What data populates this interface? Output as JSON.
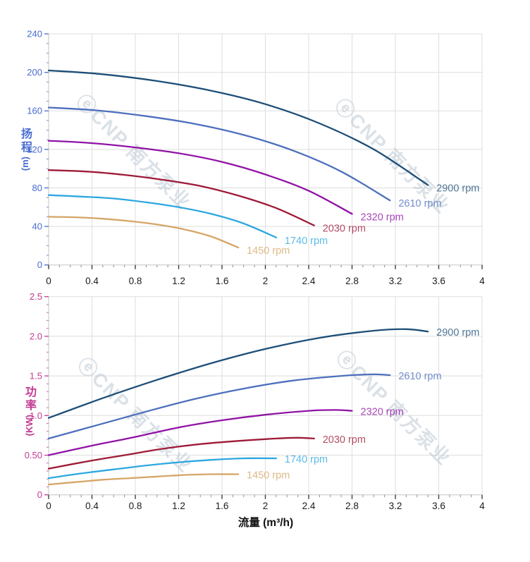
{
  "watermark": {
    "text": "ⓔCNP 南方泵业",
    "color": "#b7c4d1"
  },
  "figure": {
    "background": "#ffffff",
    "grid_color": "#dedede"
  },
  "chart_data": [
    {
      "type": "line",
      "id": "head-curves",
      "title": "",
      "xlabel": "",
      "ylabel_cn": "扬程",
      "ylabel_unit": "(m)",
      "accent": "#4a6cd0",
      "xlim": [
        0,
        4
      ],
      "ylim": [
        0,
        240
      ],
      "x_ticks": [
        0,
        0.4,
        0.8,
        1.2,
        1.6,
        2,
        2.4,
        2.8,
        3.2,
        3.6,
        4
      ],
      "x_tick_labels": [
        "0",
        "0.4",
        "0.8",
        "1.2",
        "1.6",
        "2",
        "2.4",
        "2.8",
        "3.2",
        "3.6",
        "4"
      ],
      "x_minor_step": 0.1,
      "y_ticks": [
        0,
        40,
        80,
        120,
        160,
        200,
        240
      ],
      "y_tick_labels": [
        "0",
        "40",
        "80",
        "120",
        "160",
        "200",
        "240"
      ],
      "y_minor_step": 10,
      "grid": true,
      "legend": "inline-labels-at-line-end",
      "series": [
        {
          "name": "2900 rpm",
          "color": "#1d4e78",
          "points": [
            [
              0,
              202
            ],
            [
              0.5,
              198
            ],
            [
              1.0,
              191
            ],
            [
              1.5,
              181
            ],
            [
              2.0,
              167
            ],
            [
              2.5,
              147
            ],
            [
              3.0,
              120
            ],
            [
              3.5,
              83
            ]
          ]
        },
        {
          "name": "2610 rpm",
          "color": "#4d6fbd",
          "points": [
            [
              0,
              163.5
            ],
            [
              0.45,
              160.5
            ],
            [
              0.9,
              154.5
            ],
            [
              1.35,
              146.5
            ],
            [
              1.8,
              135
            ],
            [
              2.25,
              119
            ],
            [
              2.7,
              97
            ],
            [
              3.15,
              67
            ]
          ]
        },
        {
          "name": "2320 rpm",
          "color": "#9013a5",
          "points": [
            [
              0,
              129
            ],
            [
              0.4,
              126.5
            ],
            [
              0.8,
              122
            ],
            [
              1.2,
              116
            ],
            [
              1.6,
              107
            ],
            [
              2.0,
              94
            ],
            [
              2.4,
              77
            ],
            [
              2.8,
              53
            ]
          ]
        },
        {
          "name": "2030 rpm",
          "color": "#9e1a38",
          "points": [
            [
              0,
              98.5
            ],
            [
              0.35,
              97
            ],
            [
              0.7,
              93.5
            ],
            [
              1.05,
              88.5
            ],
            [
              1.4,
              82
            ],
            [
              1.75,
              72
            ],
            [
              2.1,
              59
            ],
            [
              2.45,
              41
            ]
          ]
        },
        {
          "name": "1740 rpm",
          "color": "#2da7e0",
          "points": [
            [
              0,
              72.5
            ],
            [
              0.3,
              71
            ],
            [
              0.6,
              69
            ],
            [
              0.9,
              65
            ],
            [
              1.2,
              60
            ],
            [
              1.5,
              53
            ],
            [
              1.8,
              43
            ],
            [
              2.1,
              28.5
            ]
          ]
        },
        {
          "name": "1450 rpm",
          "color": "#d6a566",
          "points": [
            [
              0,
              50
            ],
            [
              0.25,
              49.5
            ],
            [
              0.5,
              48
            ],
            [
              0.75,
              45.5
            ],
            [
              1.0,
              42
            ],
            [
              1.25,
              37
            ],
            [
              1.5,
              29.5
            ],
            [
              1.75,
              18
            ]
          ]
        }
      ]
    },
    {
      "type": "line",
      "id": "power-curves",
      "title": "",
      "xlabel": "流量 (m³/h)",
      "ylabel_cn": "功率",
      "ylabel_unit": "(KW)",
      "accent": "#c23a92",
      "xlim": [
        0,
        4
      ],
      "ylim": [
        0,
        2.5
      ],
      "x_ticks": [
        0,
        0.4,
        0.8,
        1.2,
        1.6,
        2,
        2.4,
        2.8,
        3.2,
        3.6,
        4
      ],
      "x_tick_labels": [
        "0",
        "0.4",
        "0.8",
        "1.2",
        "1.6",
        "2",
        "2.4",
        "2.8",
        "3.2",
        "3.6",
        "4"
      ],
      "x_minor_step": 0.1,
      "y_ticks": [
        0,
        0.5,
        1.0,
        1.5,
        2.0,
        2.5
      ],
      "y_tick_labels": [
        "0",
        "0.50",
        "1.0",
        "1.5",
        "2.0",
        "2.5"
      ],
      "y_minor_step": 0.1,
      "grid": true,
      "legend": "inline-labels-at-line-end",
      "series": [
        {
          "name": "2900 rpm",
          "color": "#1d4e78",
          "points": [
            [
              0,
              0.97
            ],
            [
              0.5,
              1.22
            ],
            [
              1.0,
              1.45
            ],
            [
              1.5,
              1.66
            ],
            [
              2.0,
              1.84
            ],
            [
              2.5,
              1.98
            ],
            [
              3.0,
              2.07
            ],
            [
              3.3,
              2.09
            ],
            [
              3.5,
              2.06
            ]
          ]
        },
        {
          "name": "2610 rpm",
          "color": "#4d6fbd",
          "points": [
            [
              0,
              0.71
            ],
            [
              0.45,
              0.88
            ],
            [
              0.9,
              1.05
            ],
            [
              1.35,
              1.21
            ],
            [
              1.8,
              1.34
            ],
            [
              2.25,
              1.44
            ],
            [
              2.7,
              1.5
            ],
            [
              3.0,
              1.52
            ],
            [
              3.15,
              1.51
            ]
          ]
        },
        {
          "name": "2320 rpm",
          "color": "#9013a5",
          "points": [
            [
              0,
              0.5
            ],
            [
              0.4,
              0.62
            ],
            [
              0.8,
              0.73
            ],
            [
              1.2,
              0.85
            ],
            [
              1.6,
              0.94
            ],
            [
              2.0,
              1.01
            ],
            [
              2.4,
              1.06
            ],
            [
              2.65,
              1.07
            ],
            [
              2.8,
              1.06
            ]
          ]
        },
        {
          "name": "2030 rpm",
          "color": "#9e1a38",
          "points": [
            [
              0,
              0.33
            ],
            [
              0.35,
              0.42
            ],
            [
              0.7,
              0.5
            ],
            [
              1.05,
              0.58
            ],
            [
              1.4,
              0.64
            ],
            [
              1.75,
              0.68
            ],
            [
              2.1,
              0.71
            ],
            [
              2.3,
              0.72
            ],
            [
              2.45,
              0.71
            ]
          ]
        },
        {
          "name": "1740 rpm",
          "color": "#2da7e0",
          "points": [
            [
              0,
              0.21
            ],
            [
              0.3,
              0.27
            ],
            [
              0.6,
              0.32
            ],
            [
              0.9,
              0.37
            ],
            [
              1.2,
              0.41
            ],
            [
              1.5,
              0.44
            ],
            [
              1.8,
              0.46
            ],
            [
              2.1,
              0.46
            ]
          ]
        },
        {
          "name": "1450 rpm",
          "color": "#d6a566",
          "points": [
            [
              0,
              0.13
            ],
            [
              0.25,
              0.16
            ],
            [
              0.5,
              0.19
            ],
            [
              0.75,
              0.21
            ],
            [
              1.0,
              0.23
            ],
            [
              1.25,
              0.25
            ],
            [
              1.5,
              0.26
            ],
            [
              1.75,
              0.26
            ]
          ]
        }
      ]
    }
  ]
}
